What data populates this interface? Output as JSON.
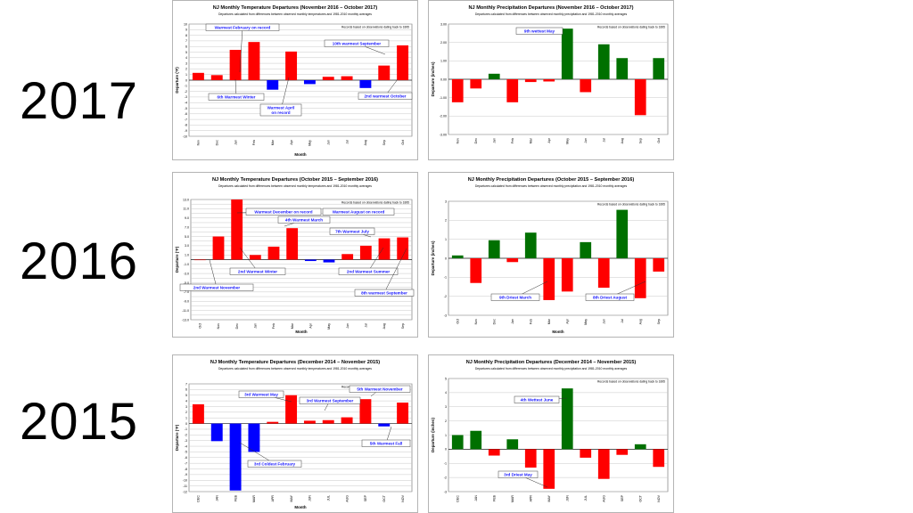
{
  "year_labels": [
    "2017",
    "2016",
    "2015"
  ],
  "colors": {
    "positive_temp": "#ff0000",
    "negative_temp": "#0000ff",
    "positive_precip": "#007000",
    "negative_precip": "#ff0000",
    "annotation": "#1a1aff",
    "grid": "#c8c8c8"
  },
  "chart_data": [
    {
      "type": "bar",
      "title": "NJ Monthly  Temperature Departures  (November 2016 – October 2017)",
      "subtitle": "Departures calculated from differences between observed monthly temperatures and 1981-2010 monthly averages",
      "note": "Records based on observations dating back to 1895",
      "xlabel": "Month",
      "ylabel": "Departure (°F)",
      "categories": [
        "Nov",
        "Dec",
        "Jan",
        "Feb",
        "Mar",
        "Apr",
        "May",
        "Jun",
        "Jul",
        "Aug",
        "Sep",
        "Oct"
      ],
      "values": [
        1.3,
        0.9,
        5.4,
        6.8,
        -1.7,
        5.1,
        -0.7,
        0.6,
        0.7,
        -1.4,
        2.6,
        6.2
      ],
      "ylim": [
        -10,
        10
      ],
      "yticks": [
        10,
        9,
        8,
        7,
        6,
        5,
        4,
        3,
        2,
        1,
        0,
        -1,
        -2,
        -3,
        -4,
        -5,
        -6,
        -7,
        -8,
        -9,
        -10
      ],
      "grid": true,
      "annotations": [
        "Warmest February on record",
        "10th warmest September",
        "6th Warmest Winter",
        "Warmest April on record",
        "2nd warmest October"
      ]
    },
    {
      "type": "bar",
      "title": "NJ Monthly  Precipitation Departures  (November 2016 – October 2017)",
      "subtitle": "Departures calculated from differences between observed monthly precipitation and 1981-2010 monthly averages",
      "note": "Records based on observations dating back to 1895",
      "xlabel": "",
      "ylabel": "Departure (inches)",
      "categories": [
        "Nov",
        "Dec",
        "Jan",
        "Feb",
        "Mar",
        "Apr",
        "May",
        "Jun",
        "Jul",
        "Aug",
        "Sep",
        "Oct"
      ],
      "values": [
        -1.25,
        -0.5,
        0.3,
        -1.25,
        -0.15,
        -0.12,
        2.75,
        -0.7,
        1.9,
        1.15,
        -1.95,
        1.15
      ],
      "ylim": [
        -3,
        3
      ],
      "yticks": [
        "3.00",
        "2.00",
        "1.00",
        "0.00",
        "-1.00",
        "-2.00",
        "-3.00"
      ],
      "grid": true,
      "annotations": [
        "9th wettest May"
      ]
    },
    {
      "type": "bar",
      "title": "NJ Monthly  Temperature Departures  (October 2015 – September 2016)",
      "subtitle": "Departures calculated from differences between observed monthly temperatures and 1981-2010 monthly averages",
      "note": "Records based on observations dating back to 1895",
      "xlabel": "Month",
      "ylabel": "Departure (°F)",
      "categories": [
        "Oct",
        "Nov",
        "Dec",
        "Jan",
        "Feb",
        "Mar",
        "Apr",
        "May",
        "Jun",
        "Jul",
        "Aug",
        "Sep"
      ],
      "values": [
        0.0,
        5.0,
        13.0,
        1.0,
        2.8,
        6.8,
        -0.3,
        -0.6,
        1.2,
        3.0,
        4.6,
        4.8
      ],
      "ylim": [
        -13,
        13
      ],
      "yticks": [
        "13.0",
        "",
        "11.0",
        "",
        "9.0",
        "",
        "7.0",
        "",
        "5.0",
        "",
        "3.0",
        "",
        "1.0",
        "",
        "-1.0",
        "",
        "-3.0",
        "",
        "-5.0",
        "",
        "-7.0",
        "",
        "-9.0",
        "",
        "-11.0",
        "",
        "-13.0"
      ],
      "grid": true,
      "annotations": [
        "Warmest December on record",
        "4th Warmest March",
        "Warmest August on record",
        "7th Warmest July",
        "2nd Warmest Winter",
        "2nd Warmest Summer",
        "2nd Warmest November",
        "8th warmest September"
      ]
    },
    {
      "type": "bar",
      "title": "NJ Monthly  Precipitation Departures  (October 2015 – September 2016)",
      "subtitle": "Departures calculated from differences between observed monthly precipitation and 1981-2010 monthly averages",
      "note": "Records based on observations dating back to 1895",
      "xlabel": "Month",
      "ylabel": "Departure (inches)",
      "categories": [
        "Oct",
        "Nov",
        "Dec",
        "Jan",
        "Feb",
        "Mar",
        "Apr",
        "May",
        "Jun",
        "Jul",
        "Aug",
        "Sep"
      ],
      "values": [
        0.15,
        -1.3,
        0.95,
        -0.2,
        1.35,
        -2.2,
        -1.75,
        0.85,
        -1.55,
        2.55,
        -2.1,
        -0.7
      ],
      "ylim": [
        -3,
        3
      ],
      "yticks": [
        "3",
        "2",
        "1",
        "0",
        "-1",
        "-2",
        "-3"
      ],
      "grid": true,
      "annotations": [
        "9th Driest March",
        "8th Driest August"
      ]
    },
    {
      "type": "bar",
      "title": "NJ Monthly  Temperature Departures  (December 2014 – November 2015)",
      "subtitle": "Departures calculated from differences between observed monthly temperatures and 1981-2010 monthly averages",
      "note": "Records based on observations dating back to 1895",
      "xlabel": "Month",
      "ylabel": "Departure (°F)",
      "categories": [
        "DEC",
        "JAN",
        "FEB",
        "MAR",
        "APR",
        "MAY",
        "JUN",
        "JUL",
        "AUG",
        "SEP",
        "OCT",
        "NOV"
      ],
      "values": [
        3.4,
        -3.1,
        -11.8,
        -5.0,
        0.3,
        5.0,
        0.5,
        0.6,
        1.1,
        4.3,
        -0.5,
        3.7
      ],
      "ylim": [
        -12,
        7
      ],
      "yticks": [
        7,
        6,
        5,
        4,
        3,
        2,
        1,
        0,
        -1,
        -2,
        -3,
        -4,
        -5,
        -6,
        -7,
        -8,
        -9,
        -10,
        -11,
        -12
      ],
      "grid": true,
      "annotations": [
        "3rd Warmest May",
        "5th Warmest November",
        "3rd Warmest September",
        "5th Warmest Fall",
        "3rd Coldest February"
      ]
    },
    {
      "type": "bar",
      "title": "NJ Monthly  Precipitation Departures  (December 2014 – November 2015)",
      "subtitle": "Departures calculated from differences between observed monthly precipitation and 1981-2010 monthly averages",
      "note": "Records based on observations dating back to 1895",
      "xlabel": "",
      "ylabel": "Departure (inches)",
      "categories": [
        "DEC",
        "JAN",
        "FEB",
        "MAR",
        "APR",
        "MAY",
        "JUN",
        "JUL",
        "AUG",
        "SEP",
        "OCT",
        "NOV"
      ],
      "values": [
        1.0,
        1.3,
        -0.45,
        0.7,
        -1.3,
        -2.8,
        4.3,
        -0.6,
        -2.1,
        -0.4,
        0.35,
        -1.25
      ],
      "ylim": [
        -3,
        5
      ],
      "yticks": [
        "5",
        "4",
        "3",
        "2",
        "1",
        "0",
        "-1",
        "-2",
        "-3"
      ],
      "grid": true,
      "annotations": [
        "4th Wettest June",
        "3rd Driest May"
      ]
    }
  ]
}
